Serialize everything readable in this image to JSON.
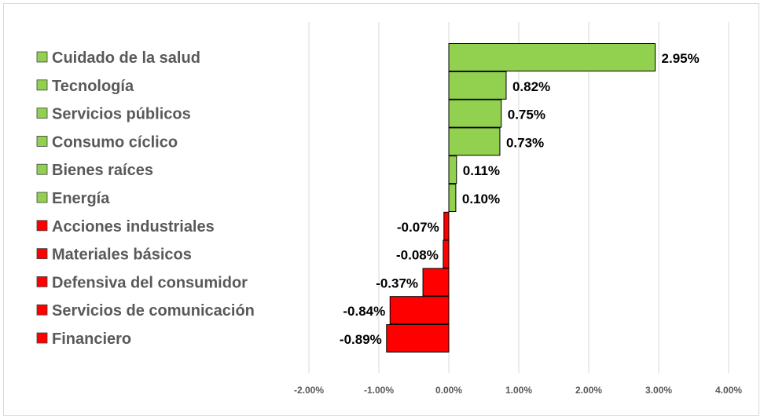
{
  "chart_data": {
    "type": "bar",
    "orientation": "horizontal",
    "title": "",
    "xlabel": "",
    "ylabel": "",
    "xlim": [
      -2.0,
      4.0
    ],
    "grid": true,
    "legend": "none",
    "categories": [
      "Cuidado de la salud",
      "Tecnología",
      "Servicios públicos",
      "Consumo cíclico",
      "Bienes raíces",
      "Energía",
      "Acciones industriales",
      "Materiales básicos",
      "Defensiva del consumidor",
      "Servicios de comunicación",
      "Financiero"
    ],
    "values": [
      2.95,
      0.82,
      0.75,
      0.73,
      0.11,
      0.1,
      -0.07,
      -0.08,
      -0.37,
      -0.84,
      -0.89
    ],
    "data_labels": [
      "2.95%",
      "0.82%",
      "0.75%",
      "0.73%",
      "0.11%",
      "0.10%",
      "-0.07%",
      "-0.08%",
      "-0.37%",
      "-0.84%",
      "-0.89%"
    ],
    "ticks": [
      {
        "value": -2,
        "label": "-2.00%"
      },
      {
        "value": -1,
        "label": "-1.00%"
      },
      {
        "value": 0,
        "label": "0.00%"
      },
      {
        "value": 1,
        "label": "1.00%"
      },
      {
        "value": 2,
        "label": "2.00%"
      },
      {
        "value": 3,
        "label": "3.00%"
      },
      {
        "value": 4,
        "label": "4.00%"
      }
    ],
    "colors": {
      "positive": "#92d050",
      "negative": "#ff0000",
      "grid": "#d9d9d9"
    }
  }
}
